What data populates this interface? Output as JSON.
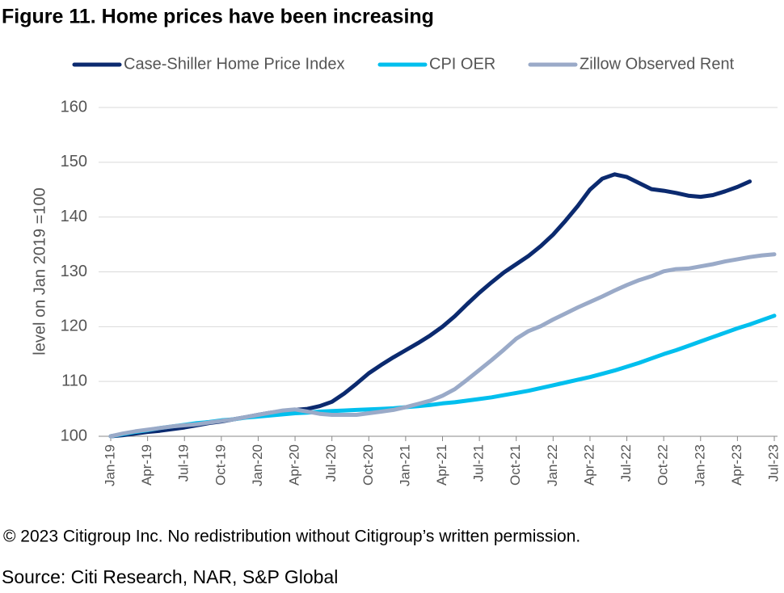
{
  "chart_data": {
    "type": "line",
    "title": "Figure 11. Home prices have been increasing",
    "y_label": "level on Jan 2019 =100",
    "categories": [
      "Jan-19",
      null,
      null,
      "Apr-19",
      null,
      null,
      "Jul-19",
      null,
      null,
      "Oct-19",
      null,
      null,
      "Jan-20",
      null,
      null,
      "Apr-20",
      null,
      null,
      "Jul-20",
      null,
      null,
      "Oct-20",
      null,
      null,
      "Jan-21",
      null,
      null,
      "Apr-21",
      null,
      null,
      "Jul-21",
      null,
      null,
      "Oct-21",
      null,
      null,
      "Jan-22",
      null,
      null,
      "Apr-22",
      null,
      null,
      "Jul-22",
      null,
      null,
      "Oct-22",
      null,
      null,
      "Jan-23",
      null,
      null,
      "Apr-23",
      null,
      null,
      "Jul-23"
    ],
    "series": [
      {
        "name": "Case-Shiller Home Price Index",
        "color": "#0b2a6f",
        "values": [
          100,
          100.2,
          100.5,
          100.8,
          101.0,
          101.3,
          101.6,
          102.0,
          102.4,
          102.7,
          103.1,
          103.5,
          103.9,
          104.3,
          104.6,
          104.8,
          105.0,
          105.5,
          106.3,
          107.8,
          109.6,
          111.5,
          113.0,
          114.4,
          115.7,
          117.0,
          118.4,
          120.0,
          121.9,
          124.1,
          126.2,
          128.1,
          129.9,
          131.4,
          132.9,
          134.7,
          136.8,
          139.3,
          142.0,
          145.0,
          147.0,
          147.8,
          147.3,
          146.2,
          145.1,
          144.8,
          144.4,
          143.9,
          143.7,
          144.0,
          144.7,
          145.5,
          146.5,
          null,
          null
        ]
      },
      {
        "name": "CPI OER",
        "color": "#00bfee",
        "values": [
          100,
          100.4,
          100.8,
          101.1,
          101.5,
          101.8,
          102.1,
          102.4,
          102.6,
          102.9,
          103.1,
          103.4,
          103.6,
          103.8,
          104.0,
          104.2,
          104.3,
          104.5,
          104.6,
          104.7,
          104.8,
          104.9,
          105.0,
          105.1,
          105.3,
          105.5,
          105.7,
          106.0,
          106.2,
          106.5,
          106.8,
          107.1,
          107.5,
          107.9,
          108.3,
          108.8,
          109.3,
          109.8,
          110.3,
          110.8,
          111.4,
          112.0,
          112.7,
          113.4,
          114.2,
          115.0,
          115.7,
          116.5,
          117.3,
          118.1,
          118.9,
          119.7,
          120.4,
          121.2,
          122.0
        ]
      },
      {
        "name": "Zillow Observed Rent",
        "color": "#9aaac8",
        "values": [
          100,
          100.5,
          100.9,
          101.2,
          101.5,
          101.8,
          102.0,
          102.2,
          102.5,
          102.8,
          103.1,
          103.5,
          103.9,
          104.3,
          104.7,
          104.9,
          104.5,
          104.1,
          103.9,
          103.9,
          103.9,
          104.2,
          104.5,
          104.8,
          105.3,
          105.9,
          106.5,
          107.4,
          108.6,
          110.3,
          112.1,
          113.9,
          115.8,
          117.8,
          119.2,
          120.1,
          121.3,
          122.4,
          123.5,
          124.5,
          125.5,
          126.6,
          127.6,
          128.5,
          129.2,
          130.1,
          130.5,
          130.6,
          131.0,
          131.4,
          131.9,
          132.3,
          132.7,
          133.0,
          133.2
        ]
      }
    ],
    "ylim": [
      100,
      160
    ],
    "yticks": [
      100,
      110,
      120,
      130,
      140,
      150,
      160
    ],
    "grid": true
  },
  "footer": {
    "copyright": "© 2023 Citigroup Inc. No redistribution without Citigroup’s written permission.",
    "source": "Source: Citi Research, NAR, S&P Global"
  }
}
